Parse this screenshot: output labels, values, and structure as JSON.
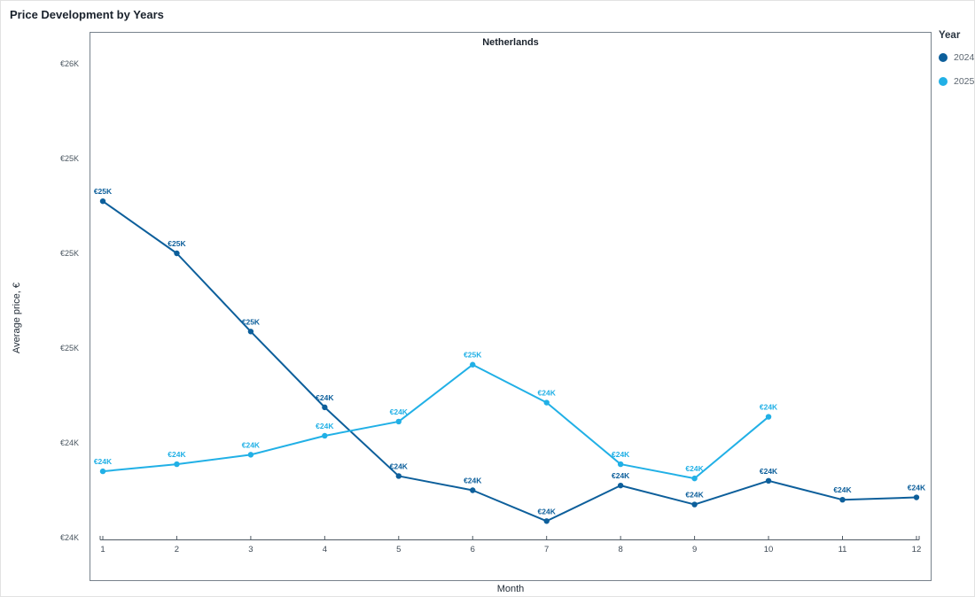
{
  "page_title": "Price Development by Years",
  "chart_data": {
    "type": "line",
    "panel_title": "Netherlands",
    "xlabel": "Month",
    "ylabel": "Average price, €",
    "units": "thousands of EUR",
    "grid": false,
    "legend": {
      "title": "Year",
      "position": "right"
    },
    "xlim": [
      1,
      12
    ],
    "ylim_k_eur": [
      23.8,
      25.95
    ],
    "x_ticks": [
      1,
      2,
      3,
      4,
      5,
      6,
      7,
      8,
      9,
      10,
      11,
      12
    ],
    "y_ticks": [
      {
        "value": 25.8,
        "label": "€26K"
      },
      {
        "value": 25.4,
        "label": "€25K"
      },
      {
        "value": 25.0,
        "label": "€25K"
      },
      {
        "value": 24.6,
        "label": "€25K"
      },
      {
        "value": 24.2,
        "label": "€24K"
      },
      {
        "value": 23.8,
        "label": "€24K"
      }
    ],
    "series": [
      {
        "name": "2024",
        "color": "#0d5f9b",
        "x": [
          1,
          2,
          3,
          4,
          5,
          6,
          7,
          8,
          9,
          10,
          11,
          12
        ],
        "values_k_eur": [
          25.22,
          25.0,
          24.67,
          24.35,
          24.06,
          24.0,
          23.87,
          24.02,
          23.94,
          24.04,
          23.96,
          23.97
        ],
        "point_labels": [
          "€25K",
          "€25K",
          "€25K",
          "€24K",
          "€24K",
          "€24K",
          "€24K",
          "€24K",
          "€24K",
          "€24K",
          "€24K",
          "€24K"
        ]
      },
      {
        "name": "2025",
        "color": "#21b0e6",
        "x": [
          1,
          2,
          3,
          4,
          5,
          6,
          7,
          8,
          9,
          10
        ],
        "values_k_eur": [
          24.08,
          24.11,
          24.15,
          24.23,
          24.29,
          24.53,
          24.37,
          24.11,
          24.05,
          24.31
        ],
        "point_labels": [
          "€24K",
          "€24K",
          "€24K",
          "€24K",
          "€24K",
          "€25K",
          "€24K",
          "€24K",
          "€24K",
          "€24K"
        ]
      }
    ]
  }
}
